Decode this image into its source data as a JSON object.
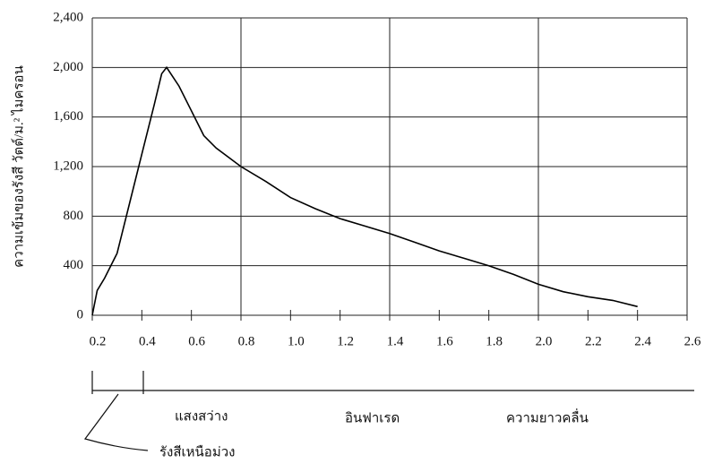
{
  "chart_data": {
    "type": "line",
    "y_label": "ความเข้มของรังสี วัตต์/ม.² ไมครอน",
    "x": [
      0.2,
      0.22,
      0.25,
      0.3,
      0.35,
      0.4,
      0.45,
      0.48,
      0.5,
      0.55,
      0.6,
      0.65,
      0.7,
      0.8,
      0.9,
      1.0,
      1.1,
      1.2,
      1.3,
      1.4,
      1.5,
      1.6,
      1.7,
      1.8,
      1.9,
      2.0,
      2.1,
      2.2,
      2.3,
      2.4
    ],
    "values": [
      0,
      200,
      300,
      500,
      900,
      1300,
      1700,
      1950,
      2000,
      1850,
      1650,
      1450,
      1350,
      1200,
      1080,
      950,
      860,
      780,
      720,
      660,
      590,
      520,
      460,
      400,
      330,
      250,
      190,
      150,
      120,
      70
    ],
    "color": "#000000",
    "xlim": [
      0.2,
      2.6
    ],
    "xticks": [
      0.2,
      0.4,
      0.6,
      0.8,
      {
        "value": 1,
        "label": "1.0"
      },
      1.2,
      1.4,
      1.6,
      1.8,
      {
        "value": 2,
        "label": "2.0"
      },
      2.2,
      2.4,
      2.6
    ],
    "ylim": [
      0,
      2400
    ],
    "yticks": [
      0,
      400,
      800,
      {
        "value": 1200,
        "label": "1,200"
      },
      {
        "value": 1600,
        "label": "1,600"
      },
      {
        "value": 2000,
        "label": "2,000"
      },
      {
        "value": 2400,
        "label": "2,400"
      }
    ],
    "xgrid": [
      0.2,
      0.8,
      1.4,
      2.0,
      2.6
    ],
    "grid": true,
    "annotations": [
      "แสงสว่าง",
      "อินฟาเรด",
      "ความยาวคลื่น",
      "รังสีเหนือม่วง"
    ]
  }
}
